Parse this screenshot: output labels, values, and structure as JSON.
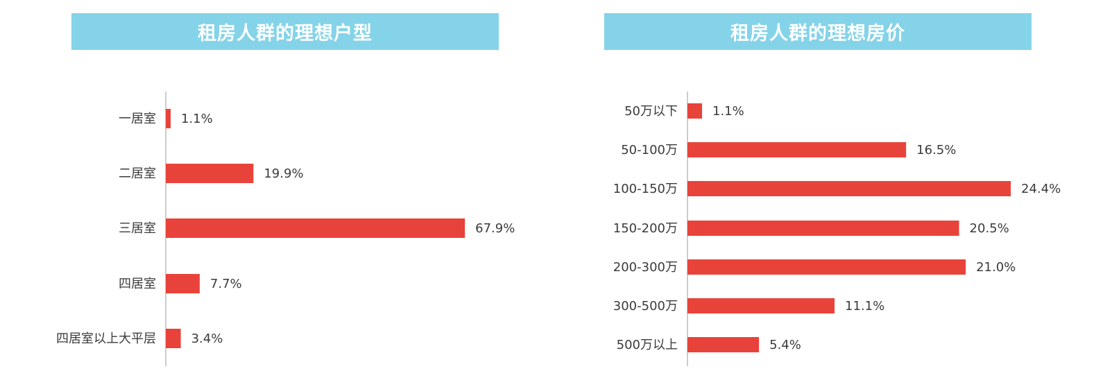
{
  "chart_data": [
    {
      "type": "bar",
      "orientation": "horizontal",
      "title": "租房人群的理想户型",
      "categories": [
        "一居室",
        "二居室",
        "三居室",
        "四居室",
        "四居室以上大平层"
      ],
      "values": [
        1.1,
        19.9,
        67.9,
        7.7,
        3.4
      ],
      "value_labels": [
        "1.1%",
        "19.9%",
        "67.9%",
        "7.7%",
        "3.4%"
      ],
      "unit": "%",
      "bar_color": "#e8433a",
      "xlim": [
        0,
        70
      ],
      "grid": false,
      "legend": "none"
    },
    {
      "type": "bar",
      "orientation": "horizontal",
      "title": "租房人群的理想房价",
      "categories": [
        "50万以下",
        "50-100万",
        "100-150万",
        "150-200万",
        "200-300万",
        "300-500万",
        "500万以上"
      ],
      "values": [
        1.1,
        16.5,
        24.4,
        20.5,
        21.0,
        11.1,
        5.4
      ],
      "value_labels": [
        "1.1%",
        "16.5%",
        "24.4%",
        "20.5%",
        "21.0%",
        "11.1%",
        "5.4%"
      ],
      "unit": "%",
      "bar_color": "#e8433a",
      "xlim": [
        0,
        25
      ],
      "grid": false,
      "legend": "none"
    }
  ],
  "colors": {
    "title_banner": "#85d3e8",
    "title_text": "#ffffff",
    "axis_line": "#cccccc",
    "label_text": "#3a3a3a"
  }
}
